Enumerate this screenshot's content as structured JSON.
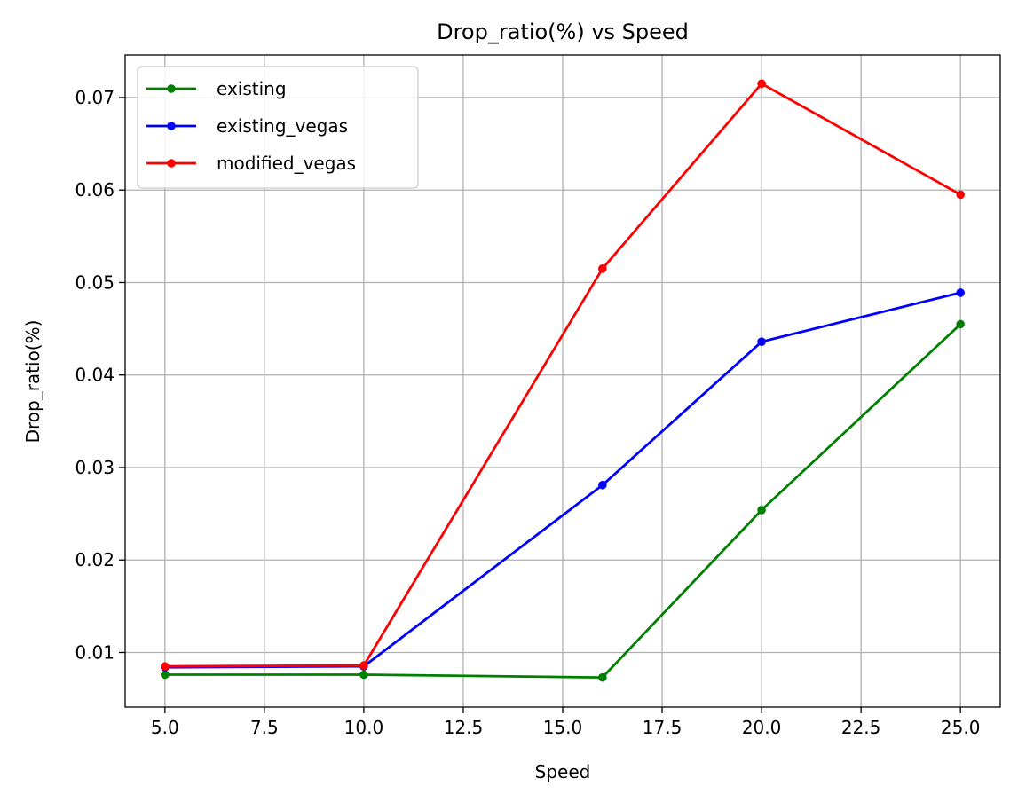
{
  "chart_data": {
    "type": "line",
    "title": "Drop_ratio(%) vs Speed",
    "xlabel": "Speed",
    "ylabel": "Drop_ratio(%)",
    "xlim": [
      4.0,
      26.0
    ],
    "ylim": [
      0.0041,
      0.0746
    ],
    "xticks": [
      5.0,
      7.5,
      10.0,
      12.5,
      15.0,
      17.5,
      20.0,
      22.5,
      25.0
    ],
    "xtick_labels": [
      "5.0",
      "7.5",
      "10.0",
      "12.5",
      "15.0",
      "17.5",
      "20.0",
      "22.5",
      "25.0"
    ],
    "yticks": [
      0.01,
      0.02,
      0.03,
      0.04,
      0.05,
      0.06,
      0.07
    ],
    "ytick_labels": [
      "0.01",
      "0.02",
      "0.03",
      "0.04",
      "0.05",
      "0.06",
      "0.07"
    ],
    "grid": true,
    "legend_position": "top-left",
    "x": [
      5,
      10,
      16,
      20,
      25
    ],
    "series": [
      {
        "name": "existing",
        "color": "#008000",
        "values": [
          0.0076,
          0.0076,
          0.0073,
          0.0254,
          0.0455
        ]
      },
      {
        "name": "existing_vegas",
        "color": "#0000ff",
        "values": [
          0.0084,
          0.0085,
          0.0281,
          0.0436,
          0.0489
        ]
      },
      {
        "name": "modified_vegas",
        "color": "#ff0000",
        "values": [
          0.0085,
          0.0086,
          0.0515,
          0.0715,
          0.0595
        ]
      }
    ]
  }
}
